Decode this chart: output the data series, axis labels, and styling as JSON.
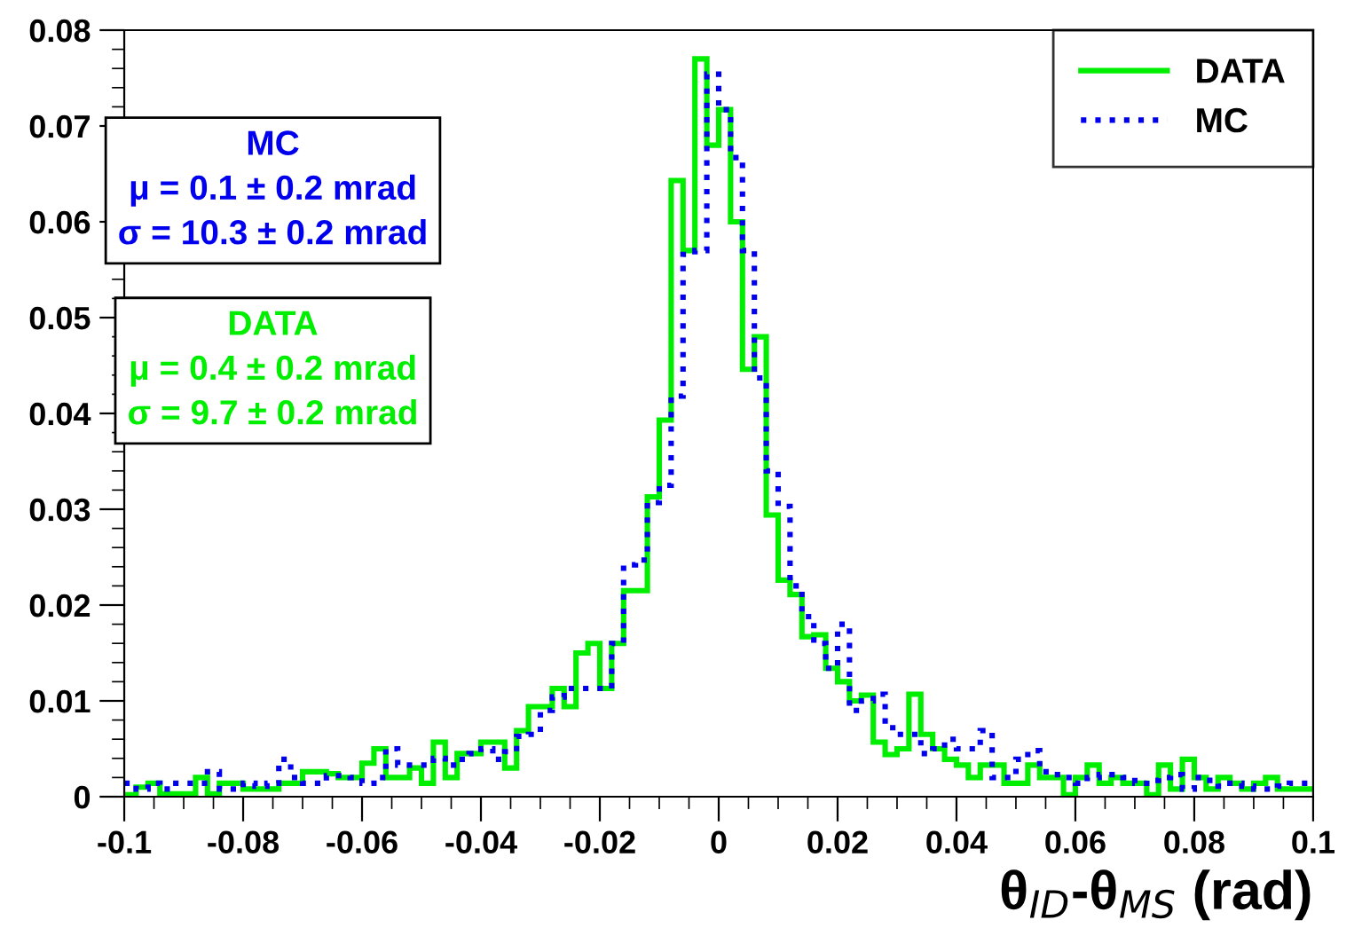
{
  "chart_data": {
    "type": "histogram",
    "xlabel": "θ$_{ID}$-θ$_{MS}$ (rad)",
    "bins": [
      -0.1,
      -0.098,
      -0.096,
      -0.094,
      -0.092,
      -0.09,
      -0.088,
      -0.086,
      -0.084,
      -0.082,
      -0.08,
      -0.078,
      -0.076,
      -0.074,
      -0.072,
      -0.07,
      -0.068,
      -0.066,
      -0.064,
      -0.062,
      -0.06,
      -0.058,
      -0.056,
      -0.054,
      -0.052,
      -0.05,
      -0.048,
      -0.046,
      -0.044,
      -0.042,
      -0.04,
      -0.038,
      -0.036,
      -0.034,
      -0.032,
      -0.03,
      -0.028,
      -0.026,
      -0.024,
      -0.022,
      -0.02,
      -0.018,
      -0.016,
      -0.014,
      -0.012,
      -0.01,
      -0.008,
      -0.006,
      -0.004,
      -0.002,
      0,
      0.002,
      0.004,
      0.006,
      0.008,
      0.01,
      0.012,
      0.014,
      0.016,
      0.018,
      0.02,
      0.022,
      0.024,
      0.026,
      0.028,
      0.03,
      0.032,
      0.034,
      0.036,
      0.038,
      0.04,
      0.042,
      0.044,
      0.046,
      0.048,
      0.05,
      0.052,
      0.054,
      0.056,
      0.058,
      0.06,
      0.062,
      0.064,
      0.066,
      0.068,
      0.07,
      0.072,
      0.074,
      0.076,
      0.078,
      0.08,
      0.082,
      0.084,
      0.086,
      0.088,
      0.09,
      0.092,
      0.094,
      0.096,
      0.098,
      0.1
    ],
    "series": [
      {
        "name": "DATA",
        "color": "#00ee00",
        "line_style": "solid",
        "values": [
          0.0002,
          0.001,
          0.0014,
          0.0003,
          0.0003,
          0.0003,
          0.002,
          0.0003,
          0.0014,
          0.0014,
          0.0008,
          0.0008,
          0.0008,
          0.0014,
          0.0014,
          0.0026,
          0.0026,
          0.0024,
          0.002,
          0.002,
          0.0035,
          0.005,
          0.002,
          0.002,
          0.003,
          0.0014,
          0.0057,
          0.002,
          0.0045,
          0.0045,
          0.0057,
          0.0057,
          0.003,
          0.0069,
          0.0094,
          0.0094,
          0.0113,
          0.0094,
          0.015,
          0.016,
          0.0113,
          0.016,
          0.0215,
          0.0215,
          0.0313,
          0.0393,
          0.0643,
          0.057,
          0.077,
          0.068,
          0.0717,
          0.06,
          0.0446,
          0.048,
          0.0294,
          0.0226,
          0.0211,
          0.0167,
          0.0169,
          0.0134,
          0.012,
          0.01,
          0.0106,
          0.0057,
          0.0044,
          0.005,
          0.0107,
          0.0065,
          0.005,
          0.0039,
          0.0033,
          0.002,
          0.0033,
          0.0033,
          0.0014,
          0.0014,
          0.0033,
          0.002,
          0.002,
          0.0002,
          0.002,
          0.0033,
          0.0014,
          0.002,
          0.0014,
          0.0014,
          0.0002,
          0.0033,
          0.0008,
          0.0039,
          0.002,
          0.0008,
          0.002,
          0.0014,
          0.0008,
          0.0014,
          0.002,
          0.0008,
          0.0008,
          0.0008
        ]
      },
      {
        "name": "MC",
        "color": "#0000ee",
        "line_style": "dotted",
        "values": [
          0.0014,
          0.0008,
          0.0014,
          0.0008,
          0.0014,
          0.0014,
          0.0014,
          0.0026,
          0.0008,
          0.0008,
          0.0014,
          0.0011,
          0.0014,
          0.0039,
          0.002,
          0.0014,
          0.0014,
          0.0022,
          0.0022,
          0.002,
          0.0014,
          0.002,
          0.005,
          0.0033,
          0.0033,
          0.0033,
          0.004,
          0.0033,
          0.0039,
          0.0045,
          0.005,
          0.0039,
          0.0047,
          0.0063,
          0.0065,
          0.009,
          0.0104,
          0.0113,
          0.0113,
          0.0113,
          0.0113,
          0.016,
          0.0242,
          0.0247,
          0.0307,
          0.0325,
          0.0418,
          0.0566,
          0.057,
          0.0754,
          0.0717,
          0.0667,
          0.057,
          0.0437,
          0.034,
          0.0303,
          0.022,
          0.0188,
          0.016,
          0.0134,
          0.018,
          0.009,
          0.01,
          0.0107,
          0.0072,
          0.0065,
          0.0065,
          0.0045,
          0.005,
          0.006,
          0.005,
          0.005,
          0.0069,
          0.002,
          0.002,
          0.0039,
          0.0048,
          0.0026,
          0.0023,
          0.002,
          0.0014,
          0.002,
          0.0023,
          0.0023,
          0.002,
          0.0014,
          0.0017,
          0.002,
          0.0023,
          0.0008,
          0.002,
          0.0017,
          0.0011,
          0.0014,
          0.0011,
          0.0008,
          0.0008,
          0.0011,
          0.0014,
          0.0014
        ]
      }
    ],
    "annotations": [
      "MC\nμ = 0.1 ± 0.2 mrad\nσ = 10.3 ± 0.2 mrad",
      "DATA\nμ = 0.4 ± 0.2 mrad\nσ = 9.7 ± 0.2 mrad"
    ],
    "xlim": [
      -0.1,
      0.1
    ],
    "xticks": [
      -0.1,
      -0.08,
      -0.06,
      -0.04,
      -0.02,
      0,
      0.02,
      0.04,
      0.06,
      0.08,
      0.1
    ],
    "ylim": [
      0,
      0.08
    ],
    "yticks": [
      0,
      0.01,
      0.02,
      0.03,
      0.04,
      0.05,
      0.06,
      0.07,
      0.08
    ],
    "legend": "top right",
    "grid": false
  }
}
